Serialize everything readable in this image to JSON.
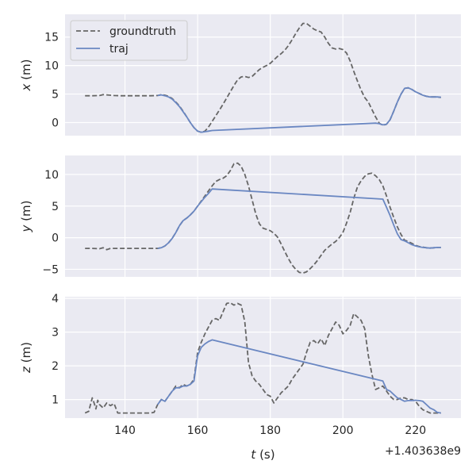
{
  "colors": {
    "background": "#eaeaf2",
    "grid": "#ffffff",
    "groundtruth": "#666666",
    "traj": "#6a87c2",
    "text": "#262626"
  },
  "x_axis": {
    "label_var": "t",
    "label_unit": " (s)",
    "ticks": [
      140,
      160,
      180,
      200,
      220
    ],
    "tick_labels": [
      "140",
      "160",
      "180",
      "200",
      "220"
    ],
    "range": [
      123.5,
      232.5
    ],
    "offset_text": "+1.403638e9"
  },
  "legend": {
    "placement": "upper left of top panel",
    "entries": [
      {
        "label": "groundtruth",
        "style": "dashed"
      },
      {
        "label": "traj",
        "style": "solid"
      }
    ]
  },
  "chart_data": [
    {
      "type": "line",
      "ylabel_var": "x",
      "ylabel_unit": " (m)",
      "ylim": [
        -2.3,
        19
      ],
      "yticks": [
        0,
        5,
        10,
        15
      ],
      "ytick_labels": [
        "0",
        "5",
        "10",
        "15"
      ],
      "grid": true,
      "series": [
        {
          "name": "groundtruth",
          "style": "dashed",
          "x": [
            129,
            131,
            133,
            134,
            135,
            136,
            137,
            139,
            141,
            143,
            145,
            147,
            149,
            150,
            151,
            152,
            153,
            154,
            155,
            156,
            157,
            158,
            159,
            160,
            161,
            162,
            163,
            164,
            165,
            166,
            167,
            168,
            169,
            170,
            171,
            172,
            173,
            174,
            175,
            176,
            177,
            178,
            179,
            180,
            181,
            182,
            183,
            184,
            185,
            186,
            187,
            188,
            189,
            190,
            191,
            192,
            193,
            194,
            195,
            196,
            197,
            198,
            199,
            200,
            201,
            202,
            203,
            204,
            205,
            206,
            207,
            208,
            209,
            210,
            211,
            212,
            213,
            214,
            215,
            216,
            217,
            218,
            219,
            220,
            221,
            222,
            223,
            224,
            225,
            226,
            227
          ],
          "y": [
            4.7,
            4.7,
            4.75,
            4.9,
            4.85,
            4.8,
            4.75,
            4.7,
            4.7,
            4.7,
            4.7,
            4.7,
            4.75,
            4.9,
            4.8,
            4.6,
            4.2,
            3.6,
            2.9,
            2.0,
            1.0,
            0.0,
            -0.9,
            -1.5,
            -1.7,
            -1.5,
            -0.8,
            0.2,
            1.2,
            2.2,
            3.2,
            4.3,
            5.4,
            6.5,
            7.5,
            8.0,
            8.1,
            7.9,
            8.1,
            8.7,
            9.3,
            9.7,
            10.0,
            10.4,
            11.0,
            11.6,
            12.1,
            12.7,
            13.5,
            14.5,
            15.6,
            16.6,
            17.4,
            17.4,
            16.9,
            16.4,
            16.1,
            15.9,
            15.0,
            13.9,
            13.1,
            12.9,
            13.0,
            12.8,
            12.2,
            10.8,
            9.0,
            7.3,
            5.7,
            4.4,
            3.6,
            2.3,
            1.0,
            -0.1,
            -0.5,
            -0.3,
            0.5,
            2.0,
            3.6,
            5.0,
            6.0,
            6.1,
            5.8,
            5.4,
            5.1,
            4.8,
            4.6,
            4.5,
            4.5,
            4.5,
            4.4
          ]
        },
        {
          "name": "traj",
          "style": "solid",
          "x": [
            149,
            150,
            151,
            152,
            153,
            154,
            155,
            156,
            157,
            158,
            159,
            160,
            161,
            162,
            163,
            164,
            209,
            210,
            211,
            212,
            213,
            214,
            215,
            216,
            217,
            218,
            219,
            220,
            221,
            222,
            223,
            224,
            225,
            226,
            227
          ],
          "y": [
            4.75,
            4.85,
            4.7,
            4.5,
            4.1,
            3.5,
            2.8,
            1.9,
            1.0,
            0.0,
            -0.9,
            -1.5,
            -1.7,
            -1.6,
            -1.5,
            -1.4,
            -0.1,
            -0.2,
            -0.4,
            -0.3,
            0.5,
            2.0,
            3.6,
            5.0,
            6.0,
            6.1,
            5.8,
            5.4,
            5.1,
            4.8,
            4.6,
            4.5,
            4.5,
            4.5,
            4.45
          ]
        }
      ]
    },
    {
      "type": "line",
      "ylabel_var": "y",
      "ylabel_unit": " (m)",
      "ylim": [
        -6.2,
        13
      ],
      "yticks": [
        -5,
        0,
        5,
        10
      ],
      "ytick_labels": [
        "−5",
        "0",
        "5",
        "10"
      ],
      "grid": true,
      "series": [
        {
          "name": "groundtruth",
          "style": "dashed",
          "x": [
            129,
            131,
            133,
            134,
            135,
            136,
            137,
            139,
            141,
            143,
            145,
            147,
            149,
            150,
            151,
            152,
            153,
            154,
            155,
            156,
            157,
            158,
            159,
            160,
            161,
            162,
            163,
            164,
            165,
            166,
            167,
            168,
            169,
            170,
            171,
            172,
            173,
            174,
            175,
            176,
            177,
            178,
            179,
            180,
            181,
            182,
            183,
            184,
            185,
            186,
            187,
            188,
            189,
            190,
            191,
            192,
            193,
            194,
            195,
            196,
            197,
            198,
            199,
            200,
            201,
            202,
            203,
            204,
            205,
            206,
            207,
            208,
            209,
            210,
            211,
            212,
            213,
            214,
            215,
            216,
            217,
            218,
            219,
            220,
            221,
            222,
            223,
            224,
            225,
            226,
            227
          ],
          "y": [
            -1.7,
            -1.7,
            -1.75,
            -1.6,
            -1.9,
            -1.7,
            -1.7,
            -1.7,
            -1.7,
            -1.7,
            -1.7,
            -1.7,
            -1.7,
            -1.6,
            -1.3,
            -0.8,
            -0.1,
            0.8,
            1.9,
            2.7,
            3.1,
            3.6,
            4.2,
            5.0,
            5.8,
            6.6,
            7.4,
            8.2,
            8.9,
            9.2,
            9.4,
            9.8,
            10.6,
            11.7,
            11.8,
            11.3,
            10.0,
            8.2,
            6.0,
            3.8,
            2.2,
            1.5,
            1.3,
            1.1,
            0.7,
            0.1,
            -1.0,
            -2.2,
            -3.3,
            -4.3,
            -5.0,
            -5.5,
            -5.6,
            -5.4,
            -4.9,
            -4.3,
            -3.6,
            -2.8,
            -2.0,
            -1.5,
            -1.0,
            -0.6,
            0.0,
            0.8,
            2.3,
            4.0,
            6.2,
            8.0,
            9.0,
            9.7,
            10.1,
            10.2,
            9.8,
            9.2,
            8.2,
            6.6,
            4.8,
            3.2,
            1.7,
            0.5,
            -0.4,
            -0.6,
            -0.9,
            -1.2,
            -1.4,
            -1.5,
            -1.6,
            -1.65,
            -1.6,
            -1.55,
            -1.55
          ]
        },
        {
          "name": "traj",
          "style": "solid",
          "x": [
            149,
            150,
            151,
            152,
            153,
            154,
            155,
            156,
            157,
            158,
            159,
            160,
            161,
            162,
            163,
            164,
            211,
            212,
            213,
            214,
            215,
            216,
            217,
            218,
            219,
            220,
            221,
            222,
            223,
            224,
            225,
            226,
            227
          ],
          "y": [
            -1.7,
            -1.6,
            -1.3,
            -0.8,
            -0.1,
            0.8,
            1.9,
            2.7,
            3.1,
            3.6,
            4.2,
            5.0,
            5.7,
            6.4,
            7.0,
            7.7,
            6.1,
            4.8,
            3.5,
            2.0,
            0.6,
            -0.3,
            -0.5,
            -0.8,
            -1.1,
            -1.3,
            -1.45,
            -1.55,
            -1.6,
            -1.65,
            -1.6,
            -1.55,
            -1.55
          ]
        }
      ]
    },
    {
      "type": "line",
      "ylabel_var": "z",
      "ylabel_unit": " (m)",
      "ylim": [
        0.45,
        4.05
      ],
      "yticks": [
        1,
        2,
        3,
        4
      ],
      "ytick_labels": [
        "1",
        "2",
        "3",
        "4"
      ],
      "grid": true,
      "series": [
        {
          "name": "groundtruth",
          "style": "dashed",
          "x": [
            129,
            130,
            131,
            131.5,
            132,
            132.5,
            133,
            134,
            135,
            136,
            137,
            138,
            139,
            141,
            143,
            145,
            147,
            148,
            149,
            150,
            151,
            152,
            153,
            154,
            155,
            156,
            157,
            158,
            159,
            160,
            161,
            162,
            163,
            164,
            165,
            166,
            167,
            168,
            169,
            170,
            171,
            172,
            173,
            174,
            175,
            176,
            177,
            178,
            179,
            180,
            181,
            182,
            183,
            184,
            185,
            186,
            187,
            188,
            189,
            190,
            191,
            192,
            193,
            194,
            195,
            196,
            197,
            198,
            199,
            200,
            201,
            202,
            203,
            204,
            205,
            206,
            207,
            208,
            209,
            210,
            211,
            212,
            213,
            214,
            215,
            216,
            217,
            218,
            219,
            220,
            221,
            222,
            223,
            224,
            225,
            226,
            227
          ],
          "y": [
            0.6,
            0.65,
            1.05,
            0.9,
            0.72,
            0.98,
            0.85,
            0.75,
            0.9,
            0.82,
            0.88,
            0.6,
            0.6,
            0.6,
            0.6,
            0.6,
            0.6,
            0.62,
            0.85,
            1.0,
            0.95,
            1.1,
            1.25,
            1.4,
            1.35,
            1.45,
            1.4,
            1.45,
            1.6,
            2.4,
            2.7,
            2.95,
            3.15,
            3.35,
            3.4,
            3.35,
            3.6,
            3.85,
            3.87,
            3.8,
            3.85,
            3.8,
            3.3,
            2.1,
            1.7,
            1.55,
            1.45,
            1.3,
            1.15,
            1.1,
            0.9,
            1.05,
            1.2,
            1.3,
            1.4,
            1.6,
            1.75,
            1.9,
            2.05,
            2.4,
            2.7,
            2.75,
            2.65,
            2.8,
            2.6,
            2.9,
            3.1,
            3.3,
            3.2,
            2.95,
            3.05,
            3.2,
            3.55,
            3.45,
            3.35,
            3.1,
            2.3,
            1.75,
            1.3,
            1.35,
            1.4,
            1.25,
            1.1,
            1.0,
            1.0,
            1.05,
            1.05,
            1.0,
            1.0,
            0.95,
            0.8,
            0.7,
            0.65,
            0.6,
            0.6,
            0.6,
            0.6
          ]
        },
        {
          "name": "traj",
          "style": "solid",
          "x": [
            149,
            150,
            151,
            152,
            153,
            154,
            155,
            156,
            157,
            158,
            159,
            160,
            161,
            162,
            163,
            164,
            211,
            212,
            213,
            214,
            215,
            216,
            217,
            218,
            219,
            220,
            221,
            222,
            223,
            224,
            225,
            226,
            227
          ],
          "y": [
            0.85,
            1.0,
            0.95,
            1.1,
            1.25,
            1.35,
            1.35,
            1.4,
            1.4,
            1.45,
            1.55,
            2.3,
            2.55,
            2.65,
            2.72,
            2.77,
            1.55,
            1.3,
            1.25,
            1.15,
            1.05,
            1.0,
            0.95,
            0.97,
            0.97,
            0.98,
            0.97,
            0.95,
            0.85,
            0.75,
            0.7,
            0.62,
            0.6
          ]
        }
      ]
    }
  ]
}
